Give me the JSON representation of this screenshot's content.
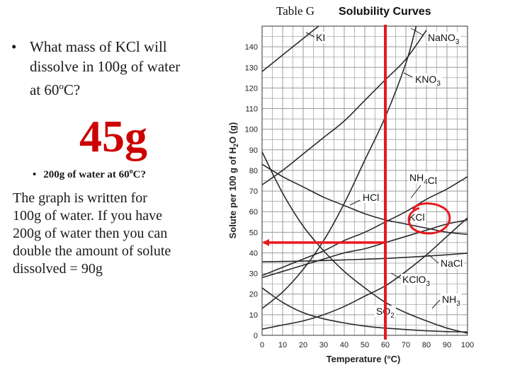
{
  "slide": {
    "bullet": "•",
    "question_l1": "What mass of KCl will",
    "question_l2": "dissolve in 100g of water",
    "question_l3_pre": "at 60",
    "question_l3_sup": "o",
    "question_l3_post": "C?",
    "answer": "45g",
    "sub_bullet": "•",
    "sub_pre": "200g of water at 60",
    "sub_sup": "o",
    "sub_post": "C?",
    "explain_l1": "The graph is written for",
    "explain_l2": "100g of water.  If you have",
    "explain_l3": "200g of water then you can",
    "explain_l4": "double the amount of solute",
    "explain_l5": "dissolved = 90g"
  },
  "colors": {
    "answer": "#cc0000",
    "highlight": "#e8181e",
    "curve": "#2a2a2a",
    "grid": "#9a9a9a"
  },
  "chart_data": {
    "type": "line",
    "title_left": "Table G",
    "title_right": "Solubility Curves",
    "xlabel": "Temperature (°C)",
    "ylabel_parts": [
      "Solute per 100 g of H",
      "2",
      "O (g)"
    ],
    "xlim": [
      0,
      100
    ],
    "ylim": [
      0,
      150
    ],
    "xticks": [
      0,
      10,
      20,
      30,
      40,
      50,
      60,
      70,
      80,
      90,
      100
    ],
    "yticks": [
      0,
      10,
      20,
      30,
      40,
      50,
      60,
      70,
      80,
      90,
      100,
      110,
      120,
      130,
      140
    ],
    "grid": true,
    "series": [
      {
        "name": "KI",
        "points": [
          [
            0,
            128
          ],
          [
            10,
            136
          ],
          [
            20,
            144
          ],
          [
            30,
            152
          ]
        ]
      },
      {
        "name": "NaNO3",
        "points": [
          [
            0,
            73
          ],
          [
            10,
            80
          ],
          [
            20,
            88
          ],
          [
            30,
            96
          ],
          [
            40,
            104
          ],
          [
            50,
            114
          ],
          [
            60,
            124
          ],
          [
            70,
            134
          ],
          [
            80,
            148
          ]
        ]
      },
      {
        "name": "KNO3",
        "points": [
          [
            0,
            13
          ],
          [
            10,
            21
          ],
          [
            20,
            32
          ],
          [
            30,
            46
          ],
          [
            40,
            64
          ],
          [
            50,
            85
          ],
          [
            60,
            106
          ],
          [
            70,
            132
          ],
          [
            75,
            150
          ]
        ]
      },
      {
        "name": "NH4Cl",
        "points": [
          [
            0,
            29
          ],
          [
            10,
            33
          ],
          [
            20,
            37
          ],
          [
            30,
            41
          ],
          [
            40,
            46
          ],
          [
            50,
            50
          ],
          [
            60,
            55
          ],
          [
            70,
            60
          ],
          [
            80,
            66
          ],
          [
            90,
            71
          ],
          [
            100,
            77
          ]
        ]
      },
      {
        "name": "HCl",
        "points": [
          [
            0,
            83
          ],
          [
            10,
            77
          ],
          [
            20,
            72
          ],
          [
            30,
            67
          ],
          [
            40,
            63
          ],
          [
            50,
            59
          ],
          [
            60,
            56
          ],
          [
            70,
            54
          ],
          [
            80,
            52
          ],
          [
            90,
            50
          ],
          [
            100,
            49
          ]
        ]
      },
      {
        "name": "KCl",
        "points": [
          [
            0,
            28
          ],
          [
            10,
            31
          ],
          [
            20,
            34
          ],
          [
            30,
            37
          ],
          [
            40,
            40
          ],
          [
            50,
            42
          ],
          [
            60,
            45
          ],
          [
            70,
            48
          ],
          [
            80,
            51
          ],
          [
            90,
            54
          ],
          [
            100,
            56
          ]
        ]
      },
      {
        "name": "NaCl",
        "points": [
          [
            0,
            35.7
          ],
          [
            20,
            36
          ],
          [
            40,
            36.6
          ],
          [
            60,
            37.3
          ],
          [
            80,
            38.4
          ],
          [
            100,
            39.8
          ]
        ]
      },
      {
        "name": "KClO3",
        "points": [
          [
            0,
            3
          ],
          [
            10,
            5
          ],
          [
            20,
            7
          ],
          [
            30,
            10
          ],
          [
            40,
            14
          ],
          [
            50,
            19
          ],
          [
            60,
            24
          ],
          [
            70,
            31
          ],
          [
            80,
            39
          ],
          [
            90,
            48
          ],
          [
            100,
            57
          ]
        ]
      },
      {
        "name": "NH3",
        "points": [
          [
            0,
            89
          ],
          [
            10,
            69
          ],
          [
            20,
            53
          ],
          [
            30,
            41
          ],
          [
            40,
            31
          ],
          [
            50,
            23
          ],
          [
            60,
            16
          ],
          [
            70,
            11
          ],
          [
            80,
            7
          ],
          [
            90,
            3.5
          ],
          [
            100,
            1
          ]
        ]
      },
      {
        "name": "SO2",
        "points": [
          [
            0,
            23
          ],
          [
            10,
            16
          ],
          [
            20,
            11
          ],
          [
            30,
            8
          ],
          [
            40,
            6
          ],
          [
            50,
            4.5
          ],
          [
            60,
            3.5
          ],
          [
            70,
            2.8
          ],
          [
            80,
            2.2
          ],
          [
            90,
            1.8
          ],
          [
            100,
            1.6
          ]
        ]
      }
    ],
    "annotations": {
      "vertical_line_x": 60,
      "arrow_to_y": 45,
      "circled_series": "KCl"
    }
  }
}
